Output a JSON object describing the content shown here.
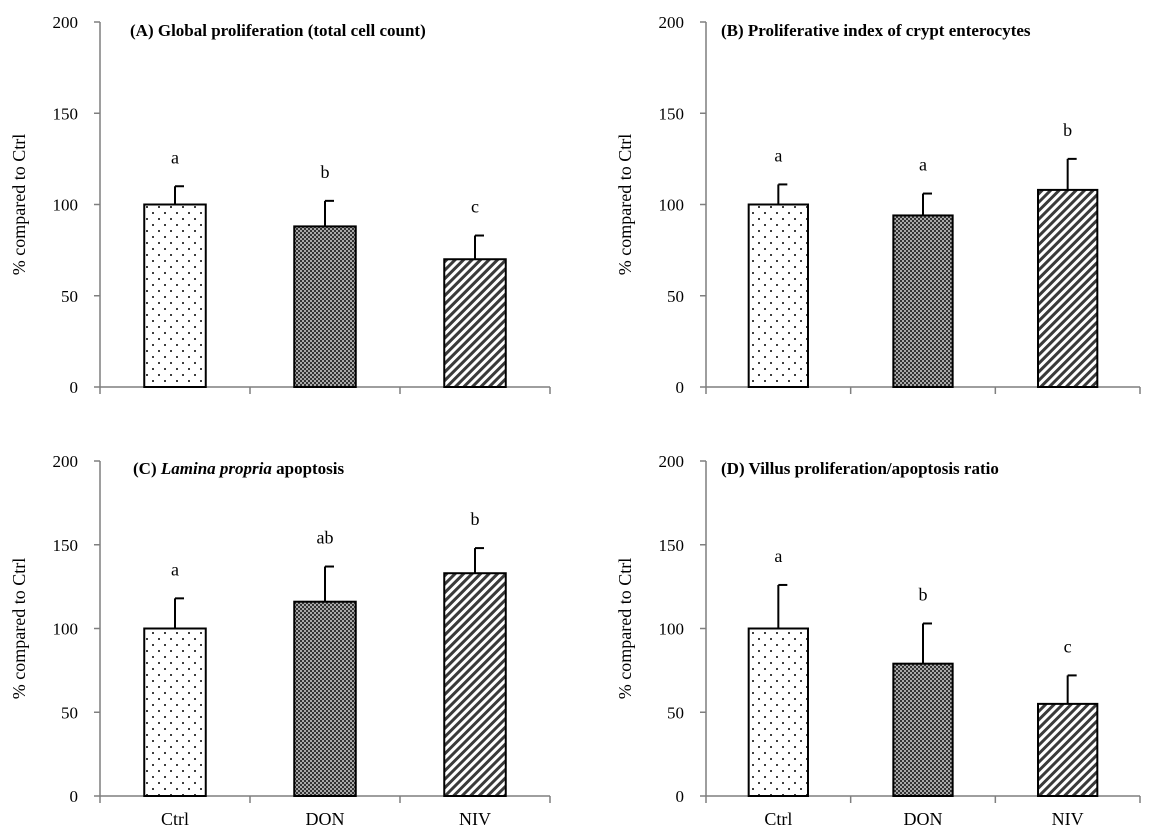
{
  "figure": {
    "colors": {
      "axis": "#7f7f7f",
      "bar_stroke": "#000000",
      "text": "#000000",
      "background": "#ffffff"
    },
    "bar_patterns": [
      "dots",
      "crosshatch",
      "diagonal-stripes"
    ]
  },
  "chart_data": [
    {
      "type": "bar",
      "title": "(A) Global proliferation (total cell count)",
      "ylabel": "% compared to Ctrl",
      "xlabel": "",
      "categories": [
        "Ctrl",
        "DON",
        "NIV"
      ],
      "values": [
        100,
        88,
        70
      ],
      "errors": [
        10,
        14,
        13
      ],
      "significance": [
        "a",
        "b",
        "c"
      ],
      "ylim": [
        0,
        200
      ],
      "yticks": [
        "0",
        "50",
        "100",
        "150",
        "200"
      ],
      "show_category_labels": false,
      "grid": false
    },
    {
      "type": "bar",
      "title": "(B) Proliferative index of crypt enterocytes",
      "ylabel": "% compared to Ctrl",
      "xlabel": "",
      "categories": [
        "Ctrl",
        "DON",
        "NIV"
      ],
      "values": [
        100,
        94,
        108
      ],
      "errors": [
        11,
        12,
        17
      ],
      "significance": [
        "a",
        "a",
        "b"
      ],
      "ylim": [
        0,
        200
      ],
      "yticks": [
        "0",
        "50",
        "100",
        "150",
        "200"
      ],
      "show_category_labels": false,
      "grid": false
    },
    {
      "type": "bar",
      "title_italic": "Lamina propria",
      "title_prefix": "(C) ",
      "title_suffix": " apoptosis",
      "title": "(C) Lamina propria apoptosis",
      "ylabel": "% compared to Ctrl",
      "xlabel": "",
      "categories": [
        "Ctrl",
        "DON",
        "NIV"
      ],
      "values": [
        100,
        116,
        133
      ],
      "errors": [
        18,
        21,
        15
      ],
      "significance": [
        "a",
        "ab",
        "b"
      ],
      "ylim": [
        0,
        200
      ],
      "yticks": [
        "0",
        "50",
        "100",
        "150",
        "200"
      ],
      "show_category_labels": true,
      "grid": false
    },
    {
      "type": "bar",
      "title": "(D) Villus proliferation/apoptosis ratio",
      "ylabel": "% compared to Ctrl",
      "xlabel": "",
      "categories": [
        "Ctrl",
        "DON",
        "NIV"
      ],
      "values": [
        100,
        79,
        55
      ],
      "errors": [
        26,
        24,
        17
      ],
      "significance": [
        "a",
        "b",
        "c"
      ],
      "ylim": [
        0,
        200
      ],
      "yticks": [
        "0",
        "50",
        "100",
        "150",
        "200"
      ],
      "show_category_labels": true,
      "grid": false
    }
  ]
}
